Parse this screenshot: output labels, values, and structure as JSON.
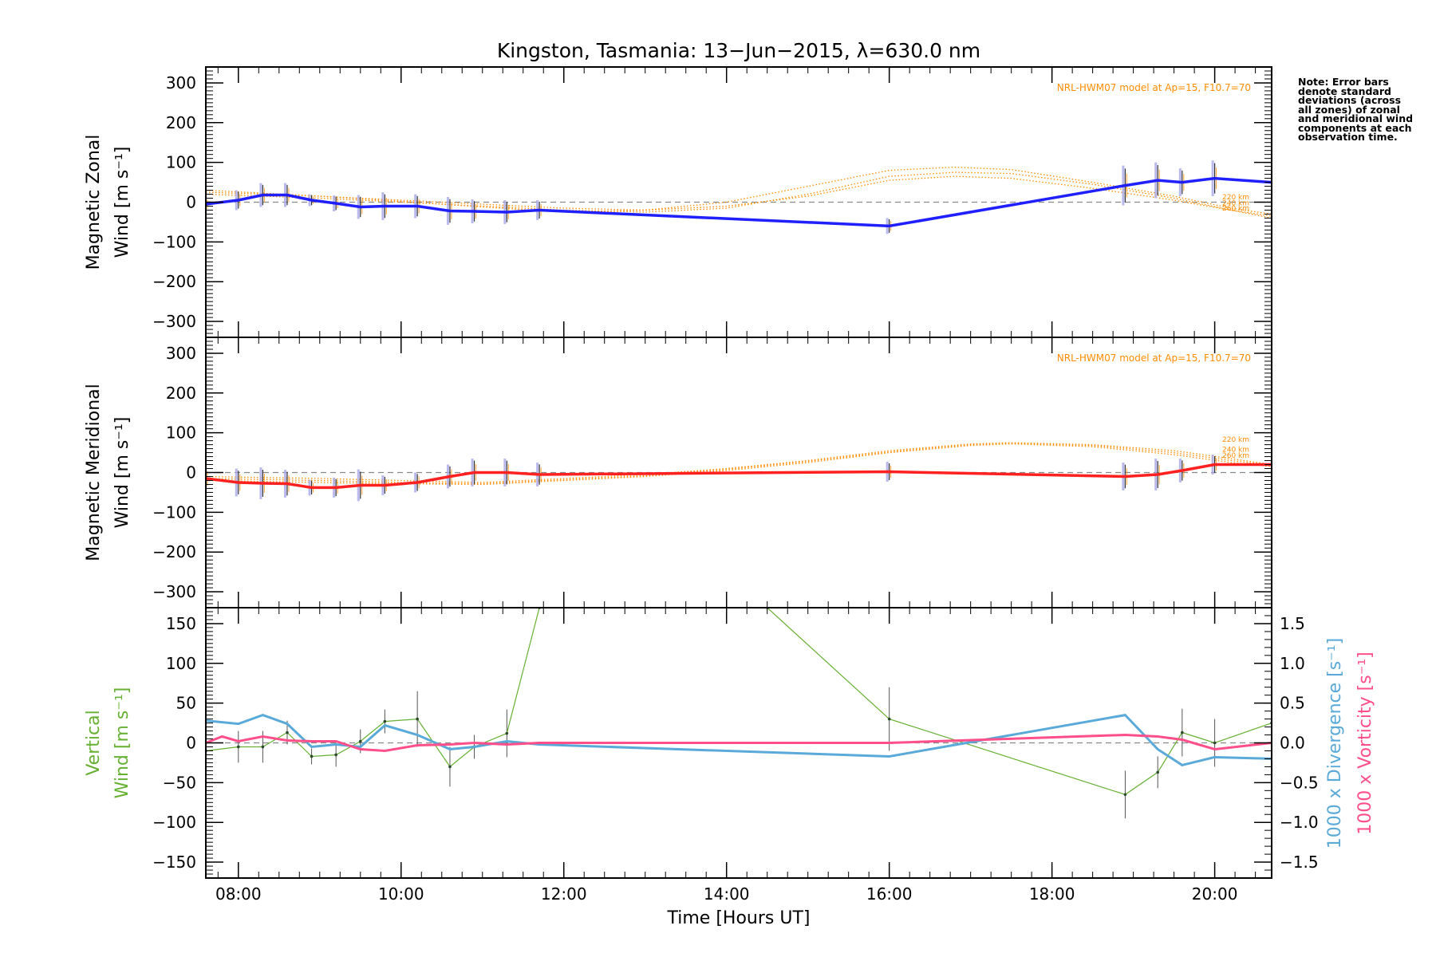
{
  "title": "Kingston, Tasmania: 13−Jun−2015, λ=630.0 nm",
  "note": "Note: Error bars denote standard deviations (across all zones) of zonal and meridional wind components at each observation time.",
  "xlabel": "Time [Hours UT]",
  "colors": {
    "zonal": "#1f1fff",
    "meridional": "#ff2020",
    "model": "#ff8c00",
    "vertical": "#66b032",
    "divergence": "#5aaad9",
    "vorticity": "#ff4f8b",
    "errbar_light": "#a8a8e8",
    "zero_line": "#888888"
  },
  "chart_data": [
    {
      "type": "line",
      "panel": "zonal",
      "ylabel_lines": [
        "Magnetic Zonal",
        "Wind [m s⁻¹]"
      ],
      "xlim": [
        7.6,
        20.7
      ],
      "ylim": [
        -340,
        340
      ],
      "yticks": [
        -300,
        -200,
        -100,
        0,
        100,
        200,
        300
      ],
      "model_label": "NRL-HWM07 model at Ap=15, F10.7=70",
      "altitude_labels": [
        "220 km",
        "240 km",
        "260 km"
      ],
      "series": [
        {
          "x": [
            7.6,
            8.0,
            8.3,
            8.6,
            8.9,
            9.2,
            9.5,
            9.8,
            10.2,
            10.6,
            10.9,
            11.3,
            11.7,
            16.0,
            18.9,
            19.3,
            19.6,
            20.0,
            20.7
          ],
          "y": [
            -5,
            5,
            18,
            18,
            5,
            -3,
            -12,
            -10,
            -10,
            -22,
            -23,
            -25,
            -20,
            -60,
            42,
            55,
            50,
            60,
            50
          ],
          "err": [
            20,
            25,
            30,
            30,
            15,
            20,
            30,
            35,
            30,
            35,
            30,
            30,
            25,
            20,
            50,
            45,
            35,
            45,
            0
          ]
        }
      ],
      "model": [
        {
          "x": [
            7.6,
            9,
            10,
            11,
            12,
            13,
            14,
            15,
            16,
            16.8,
            17.5,
            18.5,
            19.5,
            20.2,
            20.7
          ],
          "y": [
            25,
            15,
            5,
            -5,
            -15,
            -20,
            -10,
            15,
            55,
            65,
            60,
            35,
            5,
            -20,
            -35
          ]
        },
        {
          "x": [
            7.6,
            9,
            10,
            11,
            12,
            13,
            14,
            15,
            16,
            16.8,
            17.5,
            18.5,
            19.5,
            20.2,
            20.7
          ],
          "y": [
            20,
            10,
            0,
            -10,
            -20,
            -25,
            -15,
            20,
            65,
            75,
            72,
            45,
            10,
            -20,
            -40
          ]
        },
        {
          "x": [
            7.6,
            9,
            10,
            11,
            12,
            13,
            14,
            15,
            16,
            16.8,
            17.5,
            18.5,
            19.5,
            20.2,
            20.7
          ],
          "y": [
            30,
            15,
            2,
            -12,
            -25,
            -20,
            0,
            40,
            80,
            88,
            82,
            50,
            15,
            -15,
            -30
          ]
        }
      ]
    },
    {
      "type": "line",
      "panel": "meridional",
      "ylabel_lines": [
        "Magnetic Meridional",
        "Wind [m s⁻¹]"
      ],
      "xlim": [
        7.6,
        20.7
      ],
      "ylim": [
        -340,
        340
      ],
      "yticks": [
        -300,
        -200,
        -100,
        0,
        100,
        200,
        300
      ],
      "model_label": "NRL-HWM07 model at Ap=15, F10.7=70",
      "altitude_labels": [
        "220 km",
        "240 km",
        "260 km"
      ],
      "series": [
        {
          "x": [
            7.6,
            8.0,
            8.3,
            8.6,
            8.9,
            9.2,
            9.5,
            9.8,
            10.2,
            10.6,
            10.9,
            11.3,
            11.7,
            16.0,
            18.9,
            19.3,
            19.6,
            20.0,
            20.7
          ],
          "y": [
            -15,
            -25,
            -27,
            -28,
            -38,
            -38,
            -32,
            -32,
            -25,
            -10,
            0,
            0,
            -5,
            2,
            -10,
            -5,
            5,
            20,
            20
          ],
          "err": [
            30,
            35,
            40,
            35,
            20,
            25,
            40,
            25,
            25,
            30,
            35,
            35,
            30,
            25,
            35,
            40,
            30,
            25,
            0
          ]
        }
      ],
      "model": [
        {
          "x": [
            7.6,
            9,
            10,
            11,
            12,
            13,
            14,
            15,
            16,
            17,
            17.5,
            18.5,
            19.5,
            20.2,
            20.7
          ],
          "y": [
            -10,
            -15,
            -20,
            -25,
            -15,
            -5,
            10,
            30,
            55,
            72,
            75,
            70,
            55,
            35,
            20
          ]
        },
        {
          "x": [
            7.6,
            9,
            10,
            11,
            12,
            13,
            14,
            15,
            16,
            17,
            17.5,
            18.5,
            19.5,
            20.2,
            20.7
          ],
          "y": [
            -15,
            -20,
            -25,
            -28,
            -18,
            -8,
            8,
            28,
            52,
            70,
            74,
            68,
            50,
            30,
            18
          ]
        },
        {
          "x": [
            7.6,
            9,
            10,
            11,
            12,
            13,
            14,
            15,
            16,
            17,
            17.5,
            18.5,
            19.5,
            20.2,
            20.7
          ],
          "y": [
            -20,
            -25,
            -28,
            -30,
            -20,
            -10,
            5,
            25,
            50,
            68,
            72,
            65,
            45,
            25,
            15
          ]
        }
      ]
    },
    {
      "type": "line",
      "panel": "vertical",
      "ylabel_lines": [
        "Vertical",
        "Wind [m s⁻¹]"
      ],
      "right_label_divergence": "1000 x Divergence [s⁻¹]",
      "right_label_vorticity": "1000 x Vorticity [s⁻¹]",
      "xlim": [
        7.6,
        20.7
      ],
      "ylim": [
        -170,
        170
      ],
      "yticks": [
        -150,
        -100,
        -50,
        0,
        50,
        100,
        150
      ],
      "y2lim": [
        -1.7,
        1.7
      ],
      "y2ticks": [
        -1.5,
        -1.0,
        -0.5,
        0.0,
        0.5,
        1.0,
        1.5
      ],
      "y2ticklabels": [
        "−1.5",
        "−1.0",
        "−0.5",
        "0.0",
        "0.5",
        "1.0",
        "1.5"
      ],
      "series": [
        {
          "name": "Vertical",
          "x": [
            7.6,
            8.0,
            8.3,
            8.6,
            8.9,
            9.2,
            9.5,
            9.8,
            10.2,
            10.6,
            10.9,
            11.3,
            11.7,
            14.5,
            16.0,
            18.9,
            19.3,
            19.6,
            20.0,
            20.7
          ],
          "y": [
            -10,
            -5,
            -5,
            13,
            -17,
            -15,
            2,
            27,
            30,
            -30,
            -5,
            12,
            170,
            170,
            30,
            -65,
            -37,
            13,
            0,
            25
          ],
          "err": [
            15,
            20,
            20,
            15,
            10,
            15,
            15,
            15,
            35,
            25,
            15,
            30,
            0,
            0,
            40,
            30,
            20,
            30,
            30,
            0
          ]
        },
        {
          "name": "Divergence",
          "x": [
            7.6,
            8.0,
            8.3,
            8.6,
            8.9,
            9.2,
            9.5,
            9.8,
            10.2,
            10.6,
            10.9,
            11.3,
            11.7,
            16.0,
            18.9,
            19.3,
            19.6,
            20.0,
            20.7
          ],
          "y": [
            0.28,
            0.24,
            0.35,
            0.24,
            -0.05,
            -0.02,
            -0.05,
            0.22,
            0.1,
            -0.08,
            -0.05,
            0.02,
            -0.02,
            -0.17,
            0.35,
            -0.08,
            -0.28,
            -0.18,
            -0.2
          ]
        },
        {
          "name": "Vorticity",
          "x": [
            7.6,
            7.8,
            8.0,
            8.3,
            8.6,
            8.9,
            9.2,
            9.5,
            9.8,
            10.2,
            10.6,
            10.9,
            11.3,
            11.7,
            16.0,
            18.9,
            19.3,
            19.6,
            20.0,
            20.7
          ],
          "y": [
            0.0,
            0.08,
            0.02,
            0.08,
            0.03,
            0.02,
            0.02,
            -0.08,
            -0.1,
            -0.03,
            -0.02,
            0.0,
            -0.02,
            0.0,
            0.0,
            0.1,
            0.08,
            0.04,
            -0.08,
            0.0
          ]
        }
      ]
    }
  ],
  "x_ticks": [
    8,
    10,
    12,
    14,
    16,
    18,
    20
  ],
  "x_ticklabels": [
    "08:00",
    "10:00",
    "12:00",
    "14:00",
    "16:00",
    "18:00",
    "20:00"
  ]
}
